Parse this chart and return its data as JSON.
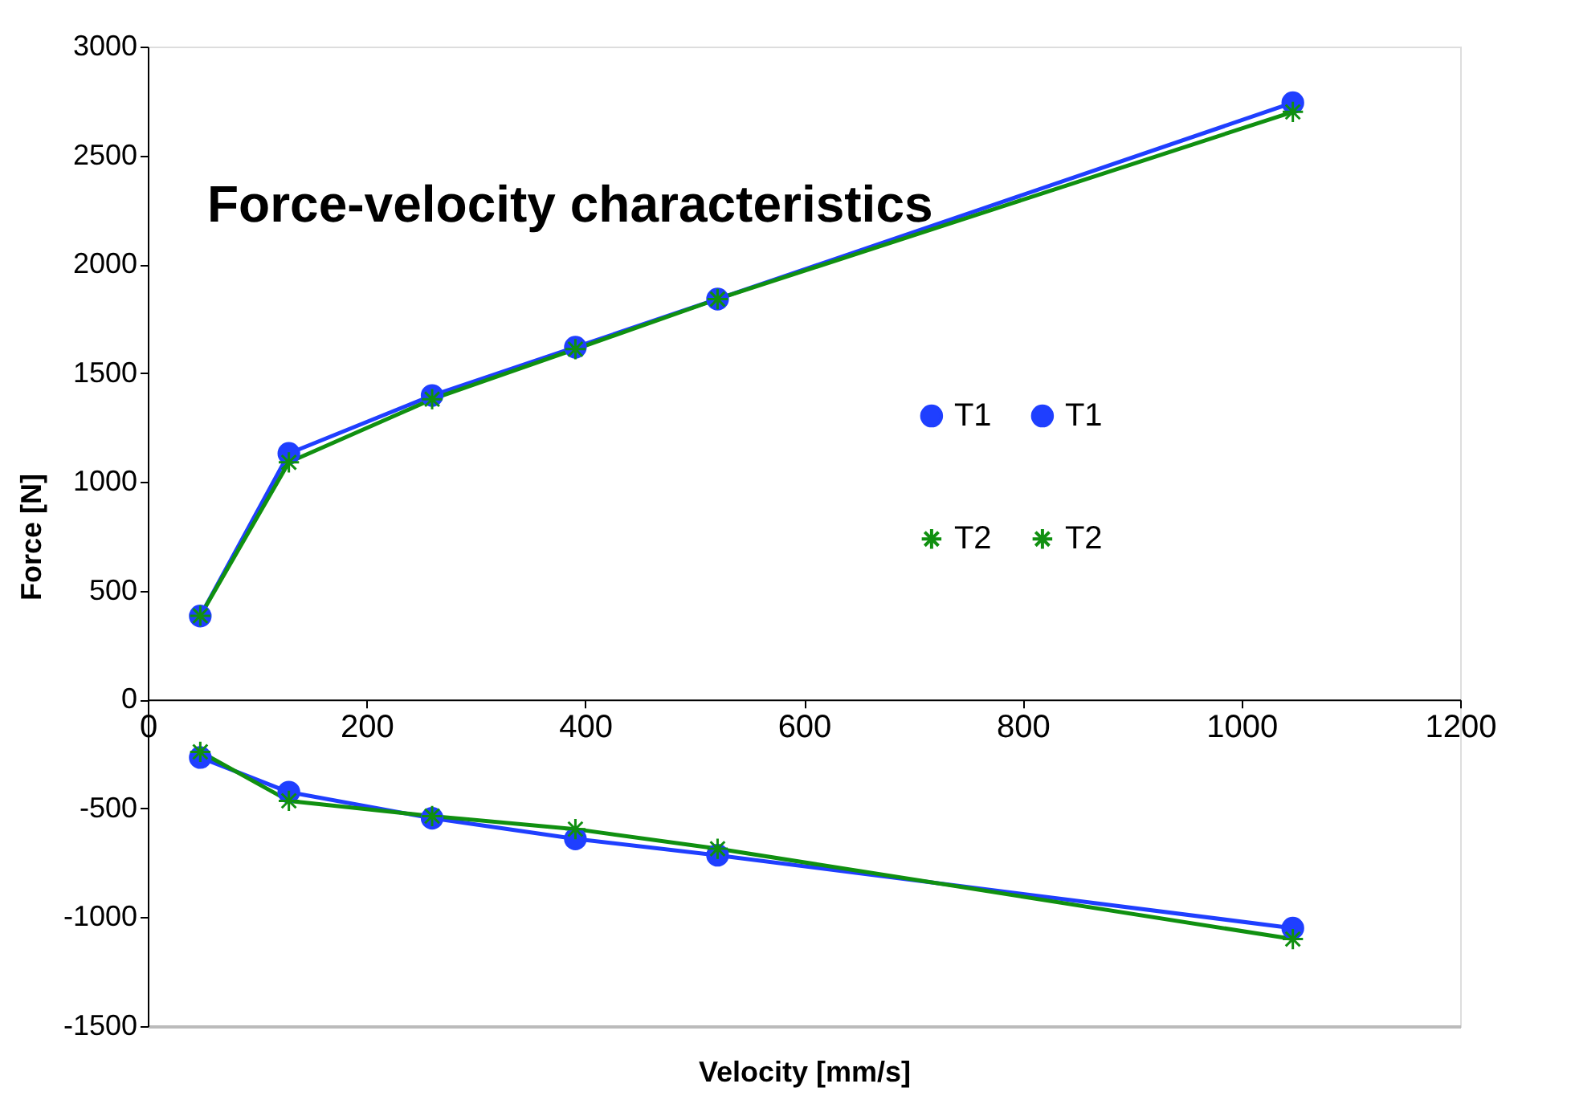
{
  "chart_data": {
    "type": "line",
    "title": "Force-velocity characteristics",
    "xlabel": "Velocity [mm/s]",
    "ylabel": "Force [N]",
    "xlim": [
      0,
      1200
    ],
    "xticks": [
      0,
      200,
      400,
      600,
      800,
      1000,
      1200
    ],
    "ylim": [
      -1500,
      3000
    ],
    "yticks": [
      -1500,
      -1000,
      -500,
      0,
      500,
      1000,
      1500,
      2000,
      2500,
      3000
    ],
    "grid": false,
    "legend": "right",
    "line_style": "solid",
    "series": [
      {
        "name": "T1",
        "color": "#1f3fff",
        "marker": "circle",
        "x": [
          48,
          129,
          260,
          391,
          521,
          1047
        ],
        "values": [
          384,
          1131,
          1397,
          1619,
          1840,
          2742
        ]
      },
      {
        "name": "T1",
        "color": "#1f3fff",
        "marker": "circle",
        "x": [
          48,
          129,
          260,
          391,
          521,
          1047
        ],
        "values": [
          -266,
          -425,
          -545,
          -640,
          -715,
          -1050
        ]
      },
      {
        "name": "T2",
        "color": "#109010",
        "marker": "cross",
        "x": [
          48,
          129,
          260,
          391,
          521,
          1047
        ],
        "values": [
          385,
          1090,
          1380,
          1610,
          1840,
          2700
        ]
      },
      {
        "name": "T2",
        "color": "#109010",
        "marker": "cross",
        "x": [
          48,
          129,
          260,
          391,
          521,
          1047
        ],
        "values": [
          -240,
          -465,
          -535,
          -595,
          -685,
          -1100
        ]
      }
    ]
  }
}
